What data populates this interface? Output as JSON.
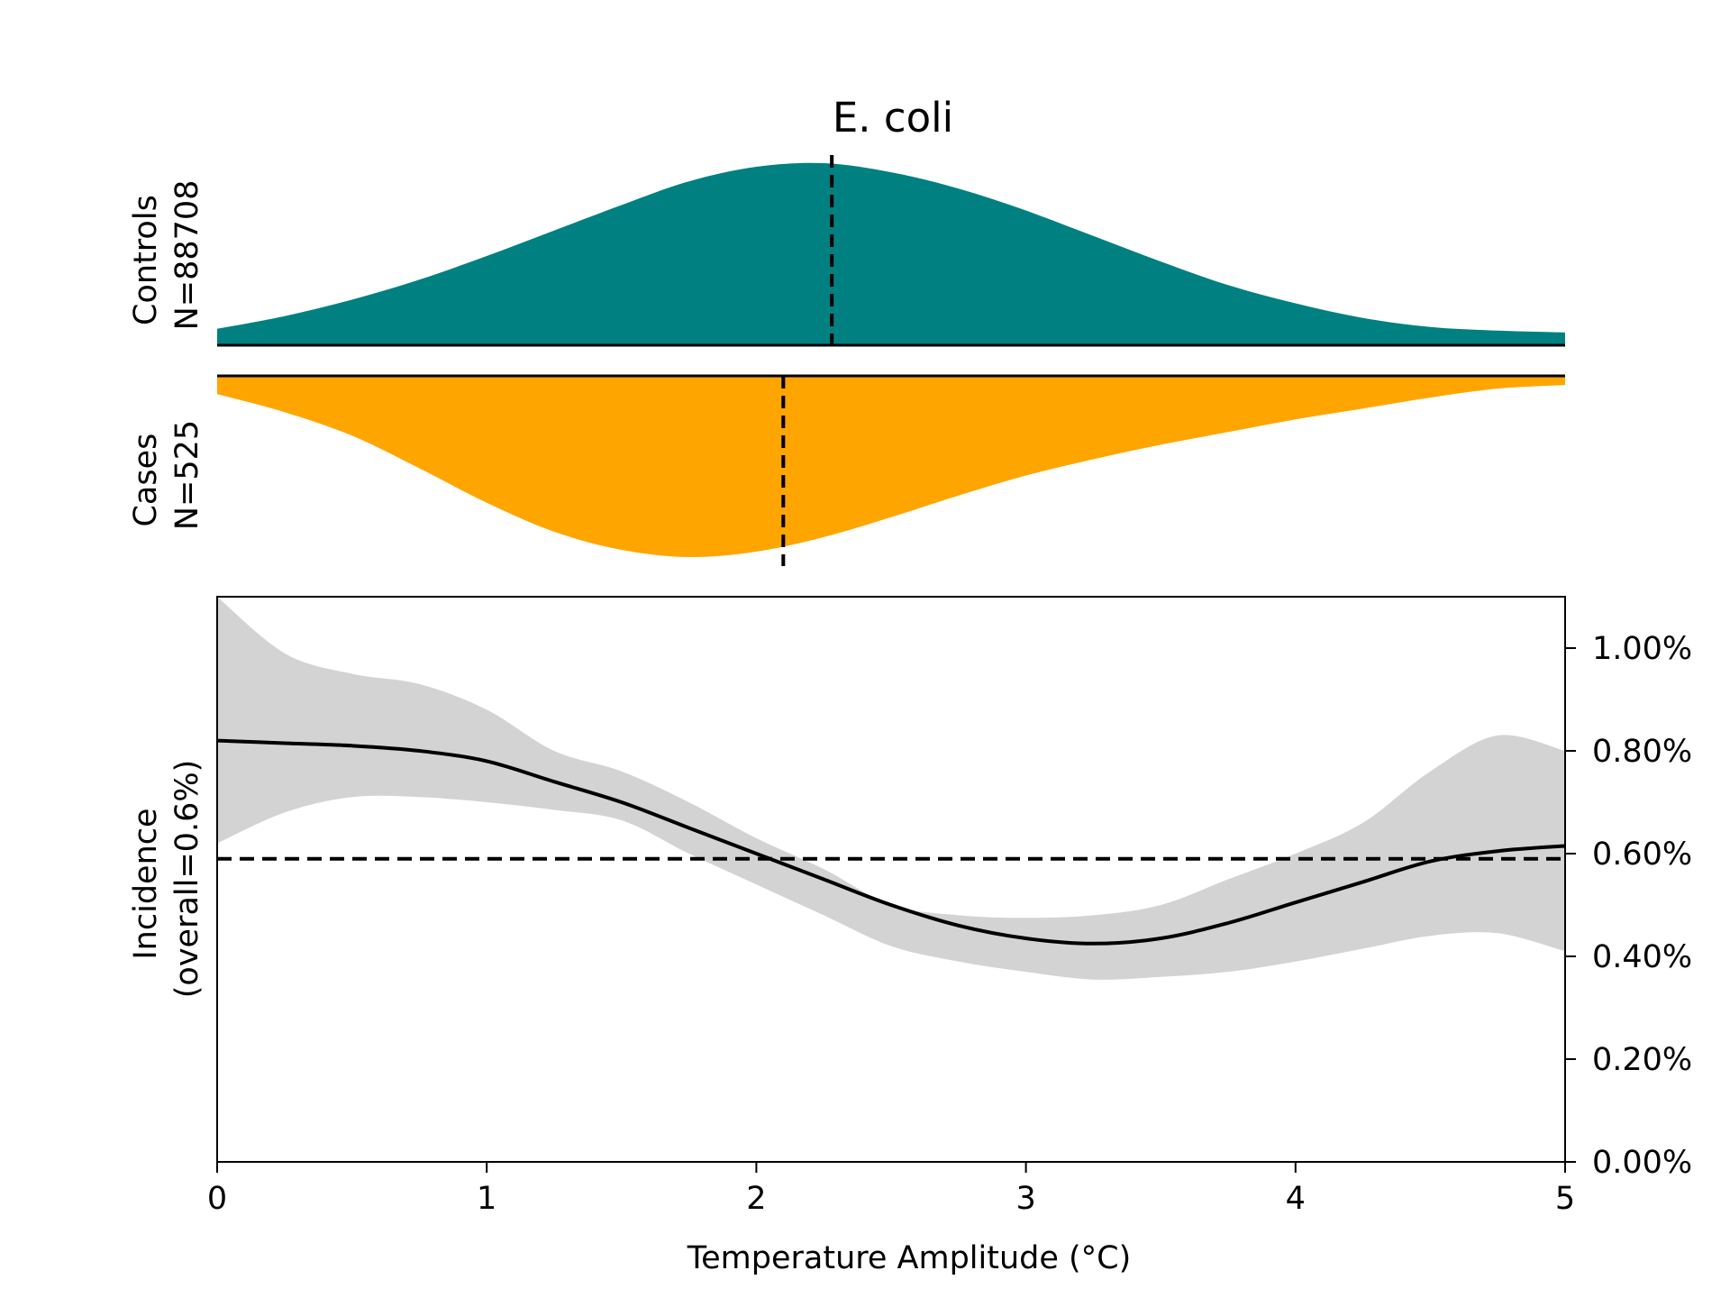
{
  "chart_data": {
    "type": "area",
    "title": "E. coli",
    "xlabel": "Temperature Amplitude (°C)",
    "xlim": [
      0,
      5
    ],
    "xticks": [
      0,
      1,
      2,
      3,
      4,
      5
    ],
    "xtick_labels": [
      "0",
      "1",
      "2",
      "3",
      "4",
      "5"
    ],
    "colors": {
      "controls": "#008080",
      "cases": "#FFA500",
      "ci_band": "#d3d3d3",
      "line": "#000000"
    },
    "distributions": [
      {
        "name": "controls",
        "label_line1": "Controls",
        "label_line2": "N=88708",
        "median": 2.28,
        "x": [
          0,
          0.25,
          0.5,
          0.75,
          1.0,
          1.25,
          1.5,
          1.75,
          2.0,
          2.25,
          2.5,
          2.75,
          3.0,
          3.25,
          3.5,
          3.75,
          4.0,
          4.25,
          4.5,
          4.75,
          5.0
        ],
        "density": [
          0.09,
          0.16,
          0.25,
          0.36,
          0.49,
          0.63,
          0.77,
          0.9,
          0.98,
          1.0,
          0.95,
          0.86,
          0.74,
          0.6,
          0.46,
          0.33,
          0.23,
          0.15,
          0.1,
          0.08,
          0.07
        ]
      },
      {
        "name": "cases",
        "label_line1": "Cases",
        "label_line2": "N=525",
        "median": 2.1,
        "x": [
          0,
          0.25,
          0.5,
          0.75,
          1.0,
          1.25,
          1.5,
          1.75,
          2.0,
          2.25,
          2.5,
          2.75,
          3.0,
          3.25,
          3.5,
          3.75,
          4.0,
          4.25,
          4.5,
          4.75,
          5.0
        ],
        "density": [
          0.1,
          0.2,
          0.33,
          0.51,
          0.7,
          0.86,
          0.96,
          1.0,
          0.97,
          0.89,
          0.78,
          0.66,
          0.55,
          0.46,
          0.38,
          0.31,
          0.24,
          0.18,
          0.12,
          0.07,
          0.05
        ]
      }
    ],
    "incidence": {
      "ylabel_line1": "Incidence",
      "ylabel_line2": "(overall=0.6%)",
      "ylim": [
        0,
        1.1
      ],
      "yticks": [
        0,
        0.2,
        0.4,
        0.6,
        0.8,
        1.0
      ],
      "ytick_labels": [
        "0.00%",
        "0.20%",
        "0.40%",
        "0.60%",
        "0.80%",
        "1.00%"
      ],
      "y_axis_side": "right",
      "overall": 0.59,
      "x": [
        0,
        0.25,
        0.5,
        0.75,
        1.0,
        1.25,
        1.5,
        1.75,
        2.0,
        2.25,
        2.5,
        2.75,
        3.0,
        3.25,
        3.5,
        3.75,
        4.0,
        4.25,
        4.5,
        4.75,
        5.0
      ],
      "estimate": [
        0.82,
        0.815,
        0.81,
        0.8,
        0.78,
        0.74,
        0.7,
        0.65,
        0.6,
        0.55,
        0.5,
        0.46,
        0.435,
        0.425,
        0.435,
        0.465,
        0.505,
        0.545,
        0.585,
        0.605,
        0.615
      ],
      "lower": [
        0.62,
        0.68,
        0.71,
        0.71,
        0.7,
        0.685,
        0.665,
        0.6,
        0.54,
        0.48,
        0.42,
        0.39,
        0.37,
        0.355,
        0.36,
        0.37,
        0.39,
        0.415,
        0.44,
        0.445,
        0.41
      ],
      "upper": [
        1.1,
        0.99,
        0.95,
        0.93,
        0.88,
        0.8,
        0.76,
        0.7,
        0.63,
        0.57,
        0.5,
        0.48,
        0.475,
        0.48,
        0.5,
        0.55,
        0.6,
        0.66,
        0.76,
        0.83,
        0.8
      ]
    }
  }
}
